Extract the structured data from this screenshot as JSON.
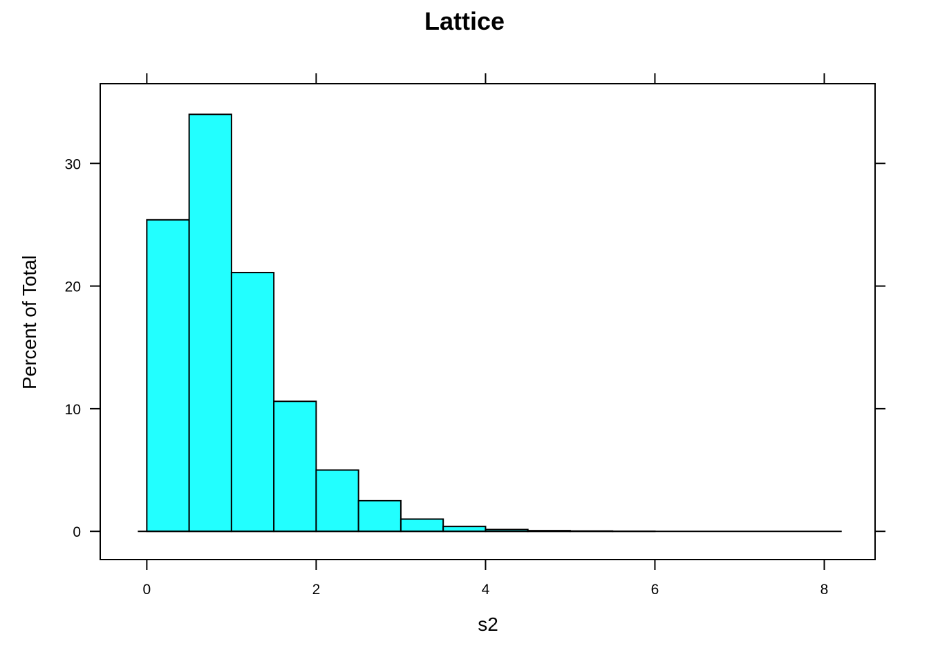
{
  "chart_data": {
    "type": "bar",
    "title": "Lattice",
    "xlabel": "s2",
    "ylabel": "Percent of Total",
    "bin_edges": [
      0,
      0.5,
      1,
      1.5,
      2,
      2.5,
      3,
      3.5,
      4,
      4.5,
      5,
      5.5,
      6,
      6.5,
      7,
      7.5,
      8,
      8.1
    ],
    "values": [
      25.4,
      34.0,
      21.1,
      10.6,
      5.0,
      2.5,
      1.0,
      0.4,
      0.15,
      0.06,
      0.03,
      0.01,
      0.0,
      0.0,
      0.0,
      0.0,
      0.0
    ],
    "xlim": [
      -0.55,
      8.6
    ],
    "ylim": [
      -2.3,
      36.5
    ],
    "x_ticks": [
      0,
      2,
      4,
      6,
      8
    ],
    "x_tick_labels": [
      "0",
      "2",
      "4",
      "6",
      "8"
    ],
    "y_ticks": [
      0,
      10,
      20,
      30
    ],
    "y_tick_labels": [
      "0",
      "10",
      "20",
      "30"
    ],
    "bar_color": "#22FFFF",
    "bar_stroke": "#000000",
    "grid": false,
    "legend": "none"
  }
}
